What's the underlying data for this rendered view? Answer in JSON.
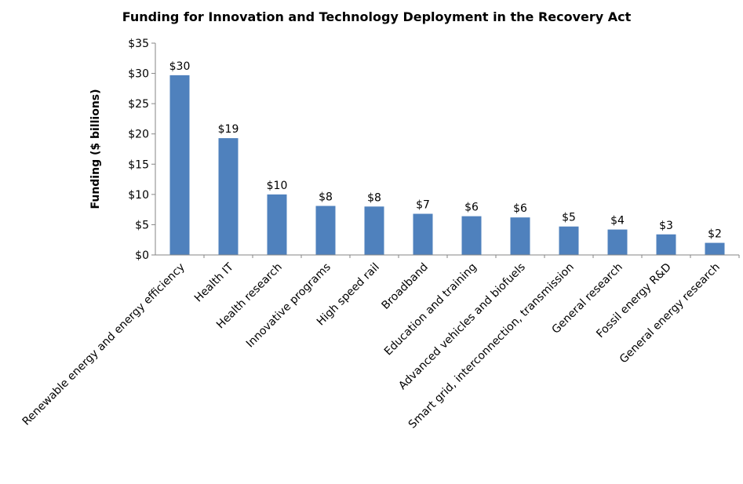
{
  "chart_data": {
    "type": "bar",
    "title": "Funding for Innovation and Technology Deployment in the Recovery Act",
    "xlabel": "",
    "ylabel": "Funding ($ billions)",
    "ylim": [
      0,
      35
    ],
    "y_ticks": [
      "$0",
      "$5",
      "$10",
      "$15",
      "$20",
      "$25",
      "$30",
      "$35"
    ],
    "grid": false,
    "bar_color": "#4f81bd",
    "categories": [
      "Renewable energy and energy efficiency",
      "Health IT",
      "Health research",
      "Innovative programs",
      "High speed rail",
      "Broadband",
      "Education and training",
      "Advanced vehicles and biofuels",
      "Smart grid, interconnection, transmission",
      "General research",
      "Fossil energy R&D",
      "General energy research"
    ],
    "values": [
      29.7,
      19.3,
      10.0,
      8.1,
      8.0,
      6.8,
      6.4,
      6.2,
      4.7,
      4.2,
      3.4,
      2.0
    ],
    "data_labels": [
      "$30",
      "$19",
      "$10",
      "$8",
      "$8",
      "$7",
      "$6",
      "$6",
      "$5",
      "$4",
      "$3",
      "$2"
    ]
  }
}
